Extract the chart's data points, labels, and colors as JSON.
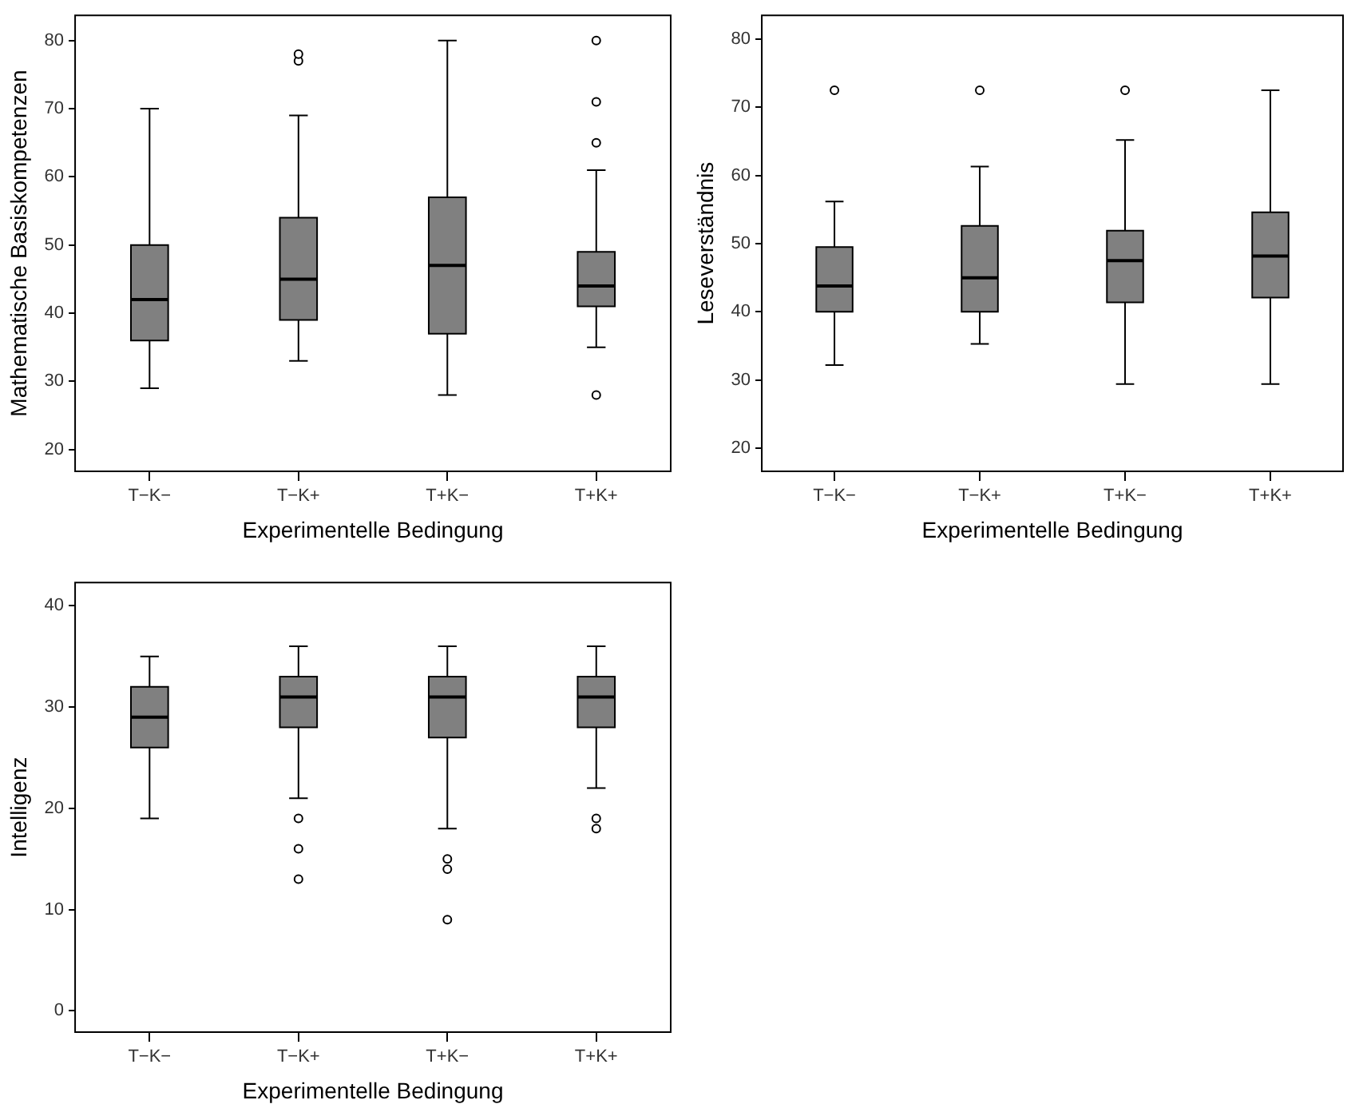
{
  "chart_data": [
    {
      "type": "box",
      "xlabel": "Experimentelle Bedingung",
      "ylabel": "Mathematische Basiskompetenzen",
      "categories": [
        "T−K−",
        "T−K+",
        "T+K−",
        "T+K+"
      ],
      "color": "#808080",
      "ylim": [
        16.8,
        83.7
      ],
      "yticks": [
        20,
        30,
        40,
        50,
        60,
        70,
        80
      ],
      "boxes": [
        {
          "low": 29,
          "q1": 36,
          "median": 42,
          "q3": 50,
          "high": 70
        },
        {
          "low": 33,
          "q1": 39,
          "median": 45,
          "q3": 54,
          "high": 69,
          "outliers": [
            77,
            78
          ]
        },
        {
          "low": 28,
          "q1": 37,
          "median": 47,
          "q3": 57,
          "high": 80
        },
        {
          "low": 35,
          "q1": 41,
          "median": 44,
          "q3": 49,
          "high": 61,
          "outliers": [
            28,
            65,
            71,
            80
          ]
        }
      ]
    },
    {
      "type": "box",
      "xlabel": "Experimentelle Bedingung",
      "ylabel": "Leseverständnis",
      "categories": [
        "T−K−",
        "T−K+",
        "T+K−",
        "T+K+"
      ],
      "color": "#808080",
      "ylim": [
        16.6,
        83.5
      ],
      "yticks": [
        20,
        30,
        40,
        50,
        60,
        70,
        80
      ],
      "boxes": [
        {
          "low": 32.2,
          "q1": 40,
          "median": 43.8,
          "q3": 49.5,
          "high": 56.2,
          "outliers": [
            72.5
          ]
        },
        {
          "low": 35.3,
          "q1": 40,
          "median": 45,
          "q3": 52.6,
          "high": 61.3,
          "outliers": [
            72.5
          ]
        },
        {
          "low": 29.4,
          "q1": 41.4,
          "median": 47.5,
          "q3": 51.9,
          "high": 65.2,
          "outliers": [
            72.5
          ]
        },
        {
          "low": 29.4,
          "q1": 42.1,
          "median": 48.2,
          "q3": 54.6,
          "high": 72.5
        }
      ]
    },
    {
      "type": "box",
      "xlabel": "Experimentelle Bedingung",
      "ylabel": "Intelligenz",
      "categories": [
        "T−K−",
        "T−K+",
        "T+K−",
        "T+K+"
      ],
      "color": "#808080",
      "ylim": [
        -2.1,
        42.3
      ],
      "yticks": [
        0,
        10,
        20,
        30,
        40
      ],
      "boxes": [
        {
          "low": 19,
          "q1": 26,
          "median": 29,
          "q3": 32,
          "high": 35
        },
        {
          "low": 21,
          "q1": 28,
          "median": 31,
          "q3": 33,
          "high": 36,
          "outliers": [
            19,
            16,
            13
          ]
        },
        {
          "low": 18,
          "q1": 27,
          "median": 31,
          "q3": 33,
          "high": 36,
          "outliers": [
            15,
            14,
            9
          ]
        },
        {
          "low": 22,
          "q1": 28,
          "median": 31,
          "q3": 33,
          "high": 36,
          "outliers": [
            19,
            18
          ]
        }
      ]
    }
  ]
}
